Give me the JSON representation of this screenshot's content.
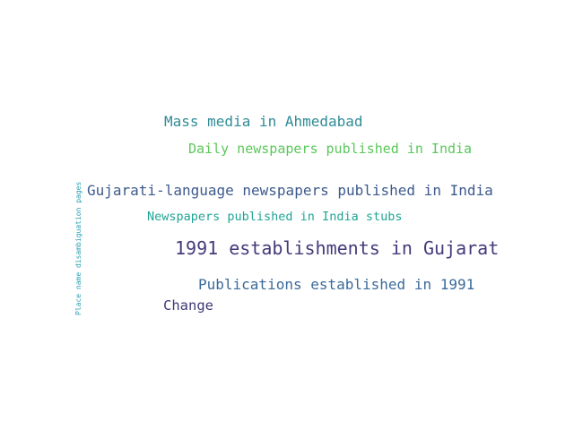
{
  "words": [
    {
      "text": "Mass media in Ahmedabad",
      "color": "#2e8b96"
    },
    {
      "text": "Daily newspapers published in India",
      "color": "#5ac85a"
    },
    {
      "text": "Gujarati-language newspapers published in India",
      "color": "#3d5a8c"
    },
    {
      "text": "Newspapers published in India stubs",
      "color": "#20a595"
    },
    {
      "text": "1991 establishments in Gujarat",
      "color": "#443a7a"
    },
    {
      "text": "Publications established in 1991",
      "color": "#3a6a9a"
    },
    {
      "text": "Change",
      "color": "#3d3a78"
    },
    {
      "text": "Place name disambiguation pages",
      "color": "#2aa0b0"
    }
  ]
}
